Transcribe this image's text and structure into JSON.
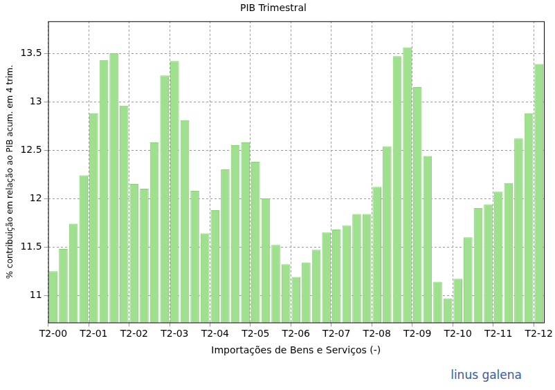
{
  "chart_data": {
    "type": "bar",
    "title": "PIB Trimestral",
    "x_label": "Importações de Bens e Serviços (-)",
    "y_label": "% contribuição em relação ao PIB acum. em 4 trim.",
    "annotation": "linus galena",
    "categories": [
      "T2-00",
      null,
      null,
      null,
      "T2-01",
      null,
      null,
      null,
      "T2-02",
      null,
      null,
      null,
      "T2-03",
      null,
      null,
      null,
      "T2-04",
      null,
      null,
      null,
      "T2-05",
      null,
      null,
      null,
      "T2-06",
      null,
      null,
      null,
      "T2-07",
      null,
      null,
      null,
      "T2-08",
      null,
      null,
      null,
      "T2-09",
      null,
      null,
      null,
      "T2-10",
      null,
      null,
      null,
      "T2-11",
      null,
      null,
      null,
      "T2-12"
    ],
    "values": [
      11.25,
      11.48,
      11.74,
      12.24,
      12.88,
      13.43,
      13.5,
      12.96,
      12.15,
      12.1,
      12.58,
      13.27,
      13.42,
      12.81,
      12.08,
      11.64,
      11.88,
      12.3,
      12.55,
      12.58,
      12.38,
      12.0,
      11.52,
      11.32,
      11.19,
      11.34,
      11.47,
      11.65,
      11.68,
      11.72,
      11.84,
      11.84,
      12.12,
      12.54,
      13.47,
      13.56,
      13.15,
      12.44,
      11.14,
      10.97,
      11.17,
      11.6,
      11.9,
      11.94,
      12.07,
      12.16,
      12.62,
      12.88,
      13.39
    ],
    "color": "#9fe08e",
    "ylim": [
      10.72,
      13.83
    ],
    "yticks": [
      11,
      11.5,
      12,
      12.5,
      13,
      13.5
    ],
    "grid": true
  }
}
